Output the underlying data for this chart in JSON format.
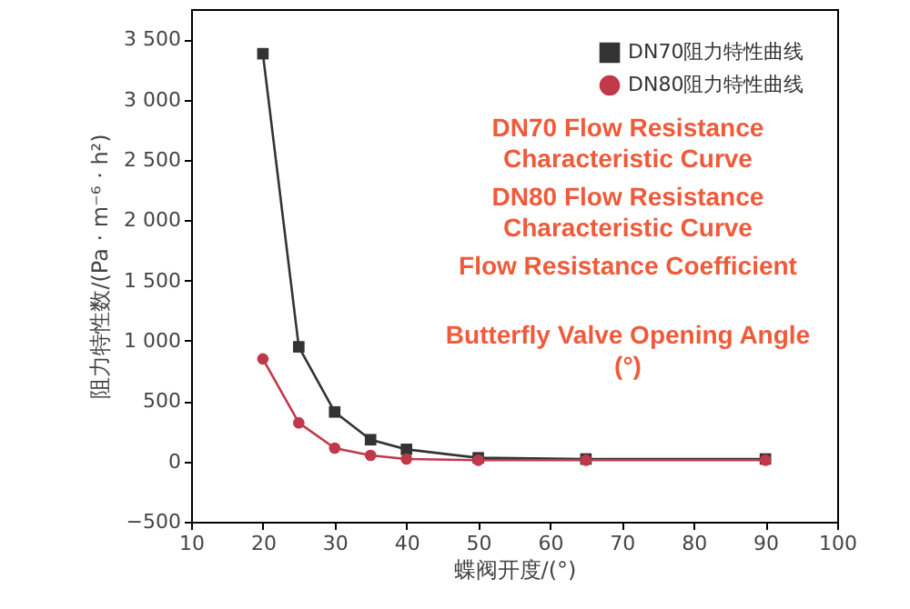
{
  "chart_data": {
    "type": "line",
    "xlabel": "蝶阀开度/(°)",
    "ylabel": "阻力特性数/(Pa · m⁻⁶ · h²)",
    "x": [
      20,
      25,
      30,
      35,
      40,
      50,
      65,
      90
    ],
    "series": [
      {
        "name": "DN70阻力特性曲线",
        "color": "#333333",
        "marker": "square",
        "values": [
          3380,
          950,
          410,
          180,
          100,
          30,
          20,
          20
        ]
      },
      {
        "name": "DN80阻力特性曲线",
        "color": "#c0394b",
        "marker": "circle",
        "values": [
          850,
          320,
          110,
          50,
          20,
          10,
          10,
          10
        ]
      }
    ],
    "xlim": [
      10,
      100
    ],
    "xticks": [
      10,
      20,
      30,
      40,
      50,
      60,
      70,
      80,
      90,
      100
    ],
    "ylim": [
      -500,
      3750
    ],
    "yticks": [
      {
        "value": -500,
        "label": "−500"
      },
      0,
      500,
      {
        "value": 1000,
        "label": "1 000"
      },
      {
        "value": 1500,
        "label": "1 500"
      },
      {
        "value": 2000,
        "label": "2 000"
      },
      {
        "value": 2500,
        "label": "2 500"
      },
      {
        "value": 3000,
        "label": "3 000"
      },
      {
        "value": 3500,
        "label": "3 500"
      }
    ],
    "grid": false,
    "legend": "top right",
    "line_style": "solid",
    "annotations": [
      "DN70 Flow Resistance Characteristic Curve",
      "DN80 Flow Resistance Characteristic Curve",
      "Flow Resistance Coefficient",
      "Butterfly Valve Opening Angle (°)"
    ]
  }
}
